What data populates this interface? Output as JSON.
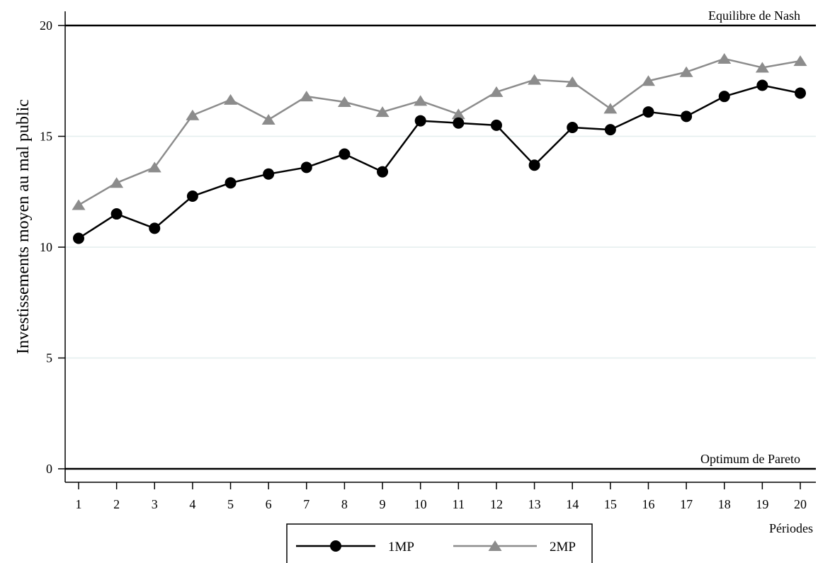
{
  "chart_data": {
    "type": "line",
    "title": "",
    "xlabel": "Périodes",
    "ylabel": "Investissements moyen au mal public",
    "x": [
      1,
      2,
      3,
      4,
      5,
      6,
      7,
      8,
      9,
      10,
      11,
      12,
      13,
      14,
      15,
      16,
      17,
      18,
      19,
      20
    ],
    "x_tick_labels": [
      "1",
      "2",
      "3",
      "4",
      "5",
      "6",
      "7",
      "8",
      "9",
      "10",
      "11",
      "12",
      "13",
      "14",
      "15",
      "16",
      "17",
      "18",
      "19",
      "20"
    ],
    "y_ticks": [
      0,
      5,
      10,
      15,
      20
    ],
    "y_tick_labels": [
      "0",
      "5",
      "10",
      "15",
      "20"
    ],
    "xlim": [
      1,
      20
    ],
    "ylim": [
      0,
      20
    ],
    "grid": true,
    "legend_position": "bottom",
    "series": [
      {
        "name": "1MP",
        "color": "#000000",
        "marker": "circle",
        "values": [
          10.4,
          11.5,
          10.85,
          12.3,
          12.9,
          13.3,
          13.6,
          14.2,
          13.4,
          15.7,
          15.6,
          15.5,
          13.7,
          15.4,
          15.3,
          16.1,
          15.9,
          16.8,
          17.3,
          16.95
        ]
      },
      {
        "name": "2MP",
        "color": "#8c8c8c",
        "marker": "triangle",
        "values": [
          11.9,
          12.9,
          13.6,
          15.95,
          16.65,
          15.75,
          16.8,
          16.55,
          16.1,
          16.6,
          16.0,
          17.0,
          17.55,
          17.45,
          16.25,
          17.5,
          17.9,
          18.5,
          18.1,
          18.4
        ]
      }
    ],
    "reference_lines": [
      {
        "y": 20,
        "label": "Equilibre de Nash"
      },
      {
        "y": 0,
        "label": "Optimum de Pareto"
      }
    ]
  }
}
